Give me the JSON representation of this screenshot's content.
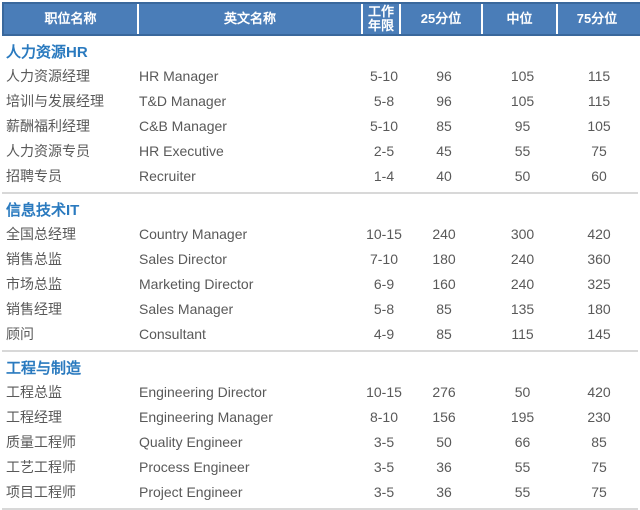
{
  "table": {
    "columns": [
      {
        "key": "position_cn",
        "label": "职位名称"
      },
      {
        "key": "position_en",
        "label": "英文名称"
      },
      {
        "key": "years",
        "label": "工作年限"
      },
      {
        "key": "p25",
        "label": "25分位"
      },
      {
        "key": "median",
        "label": "中位"
      },
      {
        "key": "p75",
        "label": "75分位"
      }
    ],
    "sections": [
      {
        "title": "人力资源HR",
        "rows": [
          [
            "人力资源经理",
            "HR Manager",
            "5-10",
            "96",
            "105",
            "115"
          ],
          [
            "培训与发展经理",
            "T&D Manager",
            "5-8",
            "96",
            "105",
            "115"
          ],
          [
            "薪酬福利经理",
            "C&B Manager",
            "5-10",
            "85",
            "95",
            "105"
          ],
          [
            "人力资源专员",
            "HR Executive",
            "2-5",
            "45",
            "55",
            "75"
          ],
          [
            "招聘专员",
            "Recruiter",
            "1-4",
            "40",
            "50",
            "60"
          ]
        ]
      },
      {
        "title": "信息技术IT",
        "rows": [
          [
            "全国总经理",
            "Country Manager",
            "10-15",
            "240",
            "300",
            "420"
          ],
          [
            "销售总监",
            "Sales Director",
            "7-10",
            "180",
            "240",
            "360"
          ],
          [
            "市场总监",
            "Marketing Director",
            "6-9",
            "160",
            "240",
            "325"
          ],
          [
            "销售经理",
            "Sales Manager",
            "5-8",
            "85",
            "135",
            "180"
          ],
          [
            "顾问",
            "Consultant",
            "4-9",
            "85",
            "115",
            "145"
          ]
        ]
      },
      {
        "title": "工程与制造",
        "rows": [
          [
            "工程总监",
            "Engineering Director",
            "10-15",
            "276",
            "50",
            "420"
          ],
          [
            "工程经理",
            "Engineering Manager",
            "8-10",
            "156",
            "195",
            "230"
          ],
          [
            "质量工程师",
            "Quality Engineer",
            "3-5",
            "50",
            "66",
            "85"
          ],
          [
            "工艺工程师",
            "Process Engineer",
            "3-5",
            "36",
            "55",
            "75"
          ],
          [
            "项目工程师",
            "Project Engineer",
            "3-5",
            "36",
            "55",
            "75"
          ]
        ]
      }
    ]
  },
  "colors": {
    "header_bg": "#4A7DB8",
    "header_border": "#3A689C",
    "header_text": "#FFFFFF",
    "section_title": "#2A7ABF",
    "row_text": "#595959",
    "separator": "#D8D8D8"
  }
}
